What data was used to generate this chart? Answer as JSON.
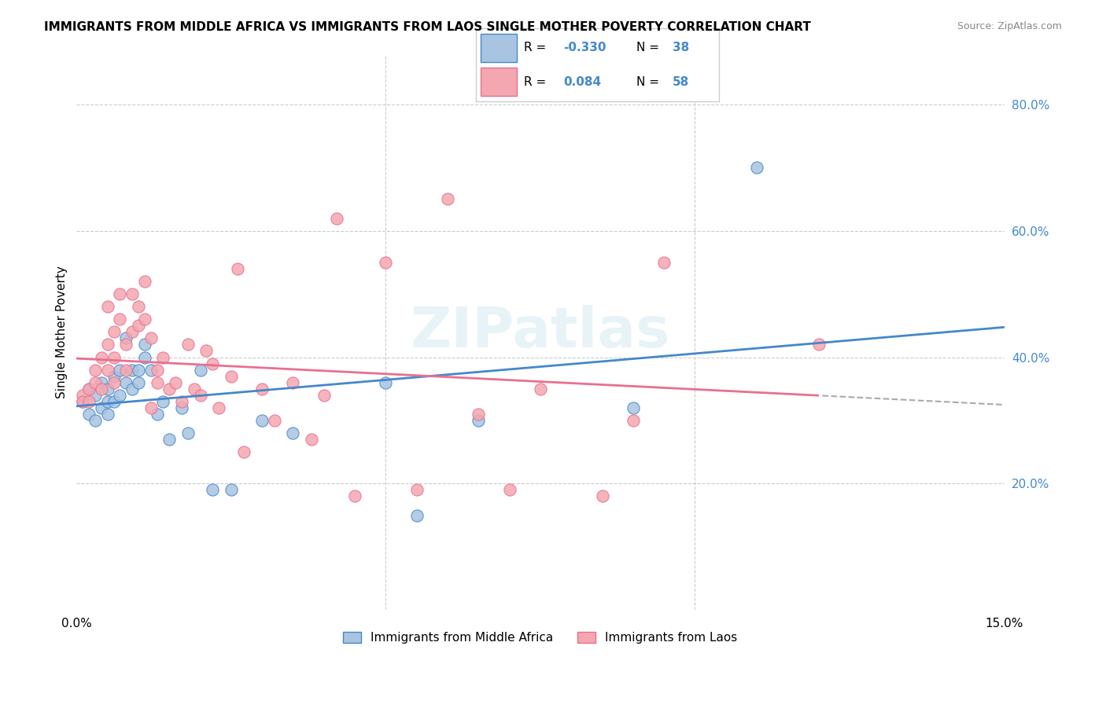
{
  "title": "IMMIGRANTS FROM MIDDLE AFRICA VS IMMIGRANTS FROM LAOS SINGLE MOTHER POVERTY CORRELATION CHART",
  "source": "Source: ZipAtlas.com",
  "ylabel": "Single Mother Poverty",
  "xlim": [
    0.0,
    0.15
  ],
  "ylim": [
    0.0,
    0.88
  ],
  "yticks_right": [
    0.2,
    0.4,
    0.6,
    0.8
  ],
  "ytick_labels_right": [
    "20.0%",
    "40.0%",
    "60.0%",
    "80.0%"
  ],
  "blue_R": -0.33,
  "blue_N": 38,
  "pink_R": 0.084,
  "pink_N": 58,
  "blue_color": "#a8c4e0",
  "pink_color": "#f4a7b0",
  "blue_line_color": "#4488cc",
  "pink_line_color": "#e87090",
  "watermark": "ZIPatlas",
  "legend1_label": "Immigrants from Middle Africa",
  "legend2_label": "Immigrants from Laos",
  "blue_x": [
    0.001,
    0.002,
    0.002,
    0.003,
    0.003,
    0.004,
    0.004,
    0.005,
    0.005,
    0.005,
    0.006,
    0.006,
    0.007,
    0.007,
    0.008,
    0.008,
    0.009,
    0.009,
    0.01,
    0.01,
    0.011,
    0.011,
    0.012,
    0.013,
    0.014,
    0.015,
    0.017,
    0.018,
    0.02,
    0.022,
    0.025,
    0.03,
    0.035,
    0.05,
    0.055,
    0.065,
    0.09,
    0.11
  ],
  "blue_y": [
    0.33,
    0.31,
    0.35,
    0.3,
    0.34,
    0.32,
    0.36,
    0.31,
    0.33,
    0.35,
    0.33,
    0.37,
    0.34,
    0.38,
    0.43,
    0.36,
    0.38,
    0.35,
    0.36,
    0.38,
    0.4,
    0.42,
    0.38,
    0.31,
    0.33,
    0.27,
    0.32,
    0.28,
    0.38,
    0.19,
    0.19,
    0.3,
    0.28,
    0.36,
    0.15,
    0.3,
    0.32,
    0.7
  ],
  "pink_x": [
    0.001,
    0.001,
    0.002,
    0.002,
    0.003,
    0.003,
    0.004,
    0.004,
    0.005,
    0.005,
    0.005,
    0.006,
    0.006,
    0.006,
    0.007,
    0.007,
    0.008,
    0.008,
    0.009,
    0.009,
    0.01,
    0.01,
    0.011,
    0.011,
    0.012,
    0.012,
    0.013,
    0.013,
    0.014,
    0.015,
    0.016,
    0.017,
    0.018,
    0.019,
    0.02,
    0.021,
    0.022,
    0.023,
    0.025,
    0.026,
    0.027,
    0.03,
    0.032,
    0.035,
    0.038,
    0.04,
    0.042,
    0.045,
    0.05,
    0.055,
    0.06,
    0.065,
    0.07,
    0.075,
    0.085,
    0.09,
    0.095,
    0.12
  ],
  "pink_y": [
    0.34,
    0.33,
    0.35,
    0.33,
    0.36,
    0.38,
    0.35,
    0.4,
    0.38,
    0.42,
    0.48,
    0.36,
    0.4,
    0.44,
    0.46,
    0.5,
    0.38,
    0.42,
    0.44,
    0.5,
    0.45,
    0.48,
    0.46,
    0.52,
    0.43,
    0.32,
    0.36,
    0.38,
    0.4,
    0.35,
    0.36,
    0.33,
    0.42,
    0.35,
    0.34,
    0.41,
    0.39,
    0.32,
    0.37,
    0.54,
    0.25,
    0.35,
    0.3,
    0.36,
    0.27,
    0.34,
    0.62,
    0.18,
    0.55,
    0.19,
    0.65,
    0.31,
    0.19,
    0.35,
    0.18,
    0.3,
    0.55,
    0.42
  ]
}
